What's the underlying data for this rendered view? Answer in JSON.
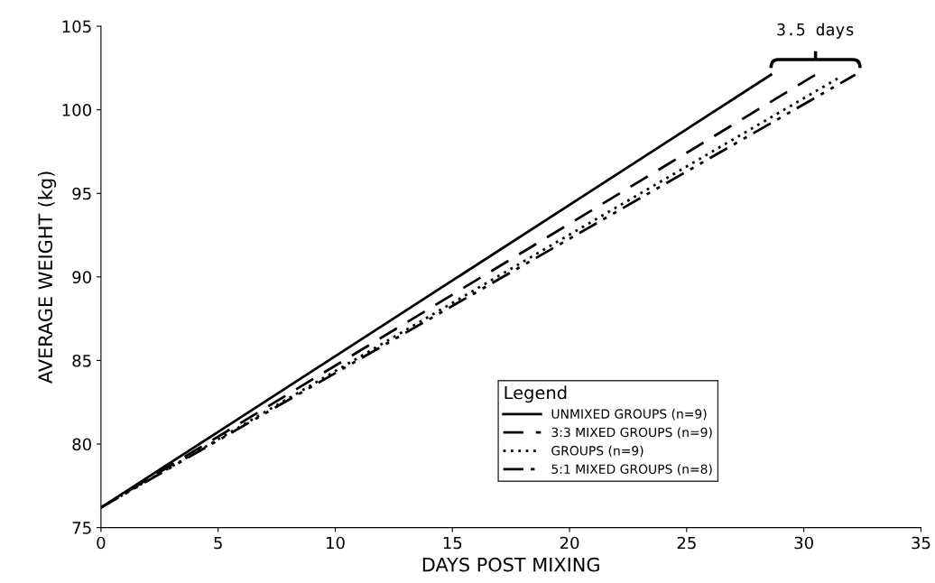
{
  "chart_data": {
    "type": "line",
    "xlabel": "DAYS POST MIXING",
    "ylabel": "AVERAGE WEIGHT (kg)",
    "legend_title": "Legend",
    "legend": "bottom right",
    "grid": false,
    "marker": "none",
    "xlim": [
      0,
      35
    ],
    "ylim": [
      75,
      105
    ],
    "xticks": [
      0,
      5,
      10,
      15,
      20,
      25,
      30,
      35
    ],
    "yticks": [
      75,
      80,
      85,
      90,
      95,
      100,
      105
    ],
    "series": [
      {
        "name": "UNMIXED GROUPS (n=9)",
        "color": "#000000",
        "line_style": "solid",
        "x": [
          0,
          28.6
        ],
        "values": [
          76.2,
          102.1
        ]
      },
      {
        "name": "3:3 MIXED GROUPS (n=9)",
        "color": "#000000",
        "line_style": "dashed",
        "x": [
          0,
          30.5
        ],
        "values": [
          76.2,
          102.1
        ]
      },
      {
        "name": "GROUPS (n=9)",
        "color": "#000000",
        "line_style": "dotted",
        "x": [
          0,
          31.6
        ],
        "values": [
          76.2,
          102.0
        ]
      },
      {
        "name": "5:1 MIXED GROUPS (n=8)",
        "color": "#000000",
        "line_style": "dashdot",
        "x": [
          0,
          32.2
        ],
        "values": [
          76.2,
          102.1
        ]
      }
    ],
    "annotations": [
      "3.5 days"
    ]
  }
}
